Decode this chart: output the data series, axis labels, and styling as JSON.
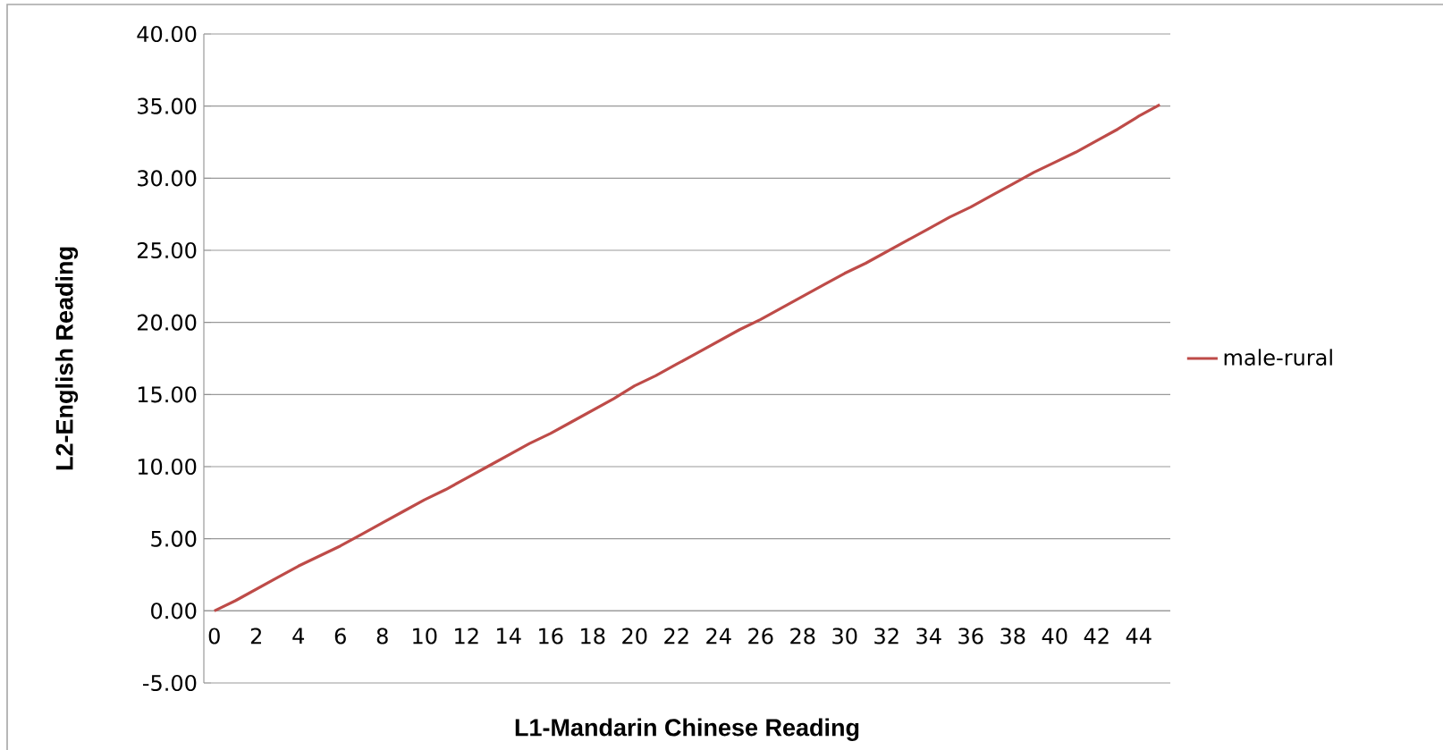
{
  "chart_data": {
    "type": "line",
    "xlabel": "L1-Mandarin Chinese Reading",
    "ylabel": "L2-English Reading",
    "categories": [
      "0",
      null,
      "2",
      null,
      "4",
      null,
      "6",
      null,
      "8",
      null,
      "10",
      null,
      "12",
      null,
      "14",
      null,
      "16",
      null,
      "18",
      null,
      "20",
      null,
      "22",
      null,
      "24",
      null,
      "26",
      null,
      "28",
      null,
      "30",
      null,
      "32",
      null,
      "34",
      null,
      "36",
      null,
      "38",
      null,
      "40",
      null,
      "42",
      null,
      "44",
      null
    ],
    "series": [
      {
        "name": "male-rural",
        "color": "#be4b48",
        "values": [
          0,
          0.7,
          1.5,
          2.3,
          3.1,
          3.8,
          4.5,
          5.3,
          6.1,
          6.9,
          7.7,
          8.4,
          9.2,
          10.0,
          10.8,
          11.6,
          12.3,
          13.1,
          13.9,
          14.7,
          15.6,
          16.3,
          17.1,
          17.9,
          18.7,
          19.5,
          20.2,
          21.0,
          21.8,
          22.6,
          23.4,
          24.1,
          24.9,
          25.7,
          26.5,
          27.3,
          28.0,
          28.8,
          29.6,
          30.4,
          31.1,
          31.8,
          32.6,
          33.4,
          34.3,
          35.1
        ]
      }
    ],
    "ylim": [
      -5,
      40
    ],
    "yticks": [
      {
        "value": -5,
        "label": "-5.00"
      },
      {
        "value": 0,
        "label": "0.00"
      },
      {
        "value": 5,
        "label": "5.00"
      },
      {
        "value": 10,
        "label": "10.00"
      },
      {
        "value": 15,
        "label": "15.00"
      },
      {
        "value": 20,
        "label": "20.00"
      },
      {
        "value": 25,
        "label": "25.00"
      },
      {
        "value": 30,
        "label": "30.00"
      },
      {
        "value": 35,
        "label": "35.00"
      },
      {
        "value": 40,
        "label": "40.00"
      }
    ],
    "grid": "y",
    "legend": "right",
    "marker": "none",
    "line_style": "solid"
  }
}
